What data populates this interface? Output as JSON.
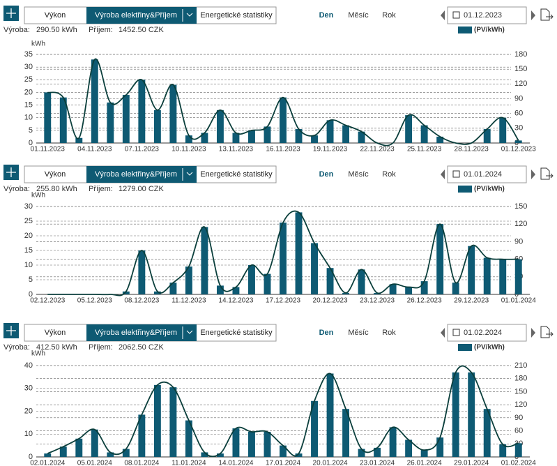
{
  "panels": [
    {
      "buttons": [
        "Výkon",
        "Výroba elektřiny&Příjem",
        "Energetické statistiky"
      ],
      "periods": [
        "Den",
        "Měsíc",
        "Rok"
      ],
      "date": "01.12.2023",
      "summary": {
        "production_label": "Výroba:",
        "production": "290.50 kWh",
        "income_label": "Příjem:",
        "income": "1452.50 CZK"
      }
    },
    {
      "buttons": [
        "Výkon",
        "Výroba elektřiny&Příjem",
        "Energetické statistiky"
      ],
      "periods": [
        "Den",
        "Měsíc",
        "Rok"
      ],
      "date": "01.01.2024",
      "summary": {
        "production_label": "Výroba:",
        "production": "255.80 kWh",
        "income_label": "Příjem:",
        "income": "1279.00 CZK"
      }
    },
    {
      "buttons": [
        "Výkon",
        "Výroba elektřiny&Příjem",
        "Energetické statistiky"
      ],
      "periods": [
        "Den",
        "Měsíc",
        "Rok"
      ],
      "date": "01.02.2024",
      "summary": {
        "production_label": "Výroba:",
        "production": "412.50 kWh",
        "income_label": "Příjem:",
        "income": "2062.50 CZK"
      }
    }
  ],
  "chart_data": [
    {
      "type": "bar",
      "y_label": "kWh",
      "categories": [
        "01.11.2023",
        null,
        null,
        "04.11.2023",
        null,
        null,
        "07.11.2023",
        null,
        null,
        "10.11.2023",
        null,
        null,
        "13.11.2023",
        null,
        null,
        "16.11.2023",
        null,
        null,
        "19.11.2023",
        null,
        null,
        "22.11.2023",
        null,
        null,
        "25.11.2023",
        null,
        null,
        "28.11.2023",
        null,
        null,
        "01.12.2023"
      ],
      "series": [
        {
          "name": "(PV/kWh)",
          "color": "#0e5a73",
          "line_color": "#0b3f3c",
          "values": [
            20,
            18,
            2,
            33,
            16,
            19,
            25,
            13,
            23,
            3,
            4,
            13,
            4,
            5,
            6.5,
            18,
            5.5,
            3,
            9,
            7,
            4.5,
            0,
            0,
            11,
            7,
            2.5,
            0,
            0,
            5.5,
            10,
            1
          ]
        }
      ],
      "ylim": [
        0,
        35
      ],
      "yticks": [
        0,
        5,
        10,
        15,
        20,
        25,
        30,
        35
      ],
      "y2lim": [
        0,
        180
      ],
      "y2ticks": [
        0,
        30,
        60,
        90,
        120,
        150,
        180
      ],
      "grid": true
    },
    {
      "type": "bar",
      "y_label": "kWh",
      "categories": [
        "02.12.2023",
        null,
        null,
        "05.12.2023",
        null,
        null,
        "08.12.2023",
        null,
        null,
        "11.12.2023",
        null,
        null,
        "14.12.2023",
        null,
        null,
        "17.12.2023",
        null,
        null,
        "20.12.2023",
        null,
        null,
        "23.12.2023",
        null,
        null,
        "26.12.2023",
        null,
        null,
        "29.12.2023",
        null,
        null,
        "01.01.2024"
      ],
      "series": [
        {
          "name": "(PV/kWh)",
          "color": "#0e5a73",
          "line_color": "#0b3f3c",
          "values": [
            0,
            0,
            0,
            0,
            0,
            1,
            15,
            1,
            4,
            9.5,
            23,
            3,
            2.5,
            10,
            7,
            24.5,
            28,
            17.5,
            9,
            0.5,
            8.5,
            0.5,
            3.5,
            2.5,
            4.5,
            24,
            4,
            16.5,
            12.5,
            12,
            12
          ]
        }
      ],
      "ylim": [
        0,
        30
      ],
      "yticks": [
        0,
        5,
        10,
        15,
        20,
        25,
        30
      ],
      "y2lim": [
        0,
        150
      ],
      "y2ticks": [
        0,
        30,
        60,
        90,
        120,
        150
      ],
      "grid": true
    },
    {
      "type": "bar",
      "y_label": "kWh",
      "categories": [
        "02.01.2024",
        null,
        null,
        "05.01.2024",
        null,
        null,
        "08.01.2024",
        null,
        null,
        "11.01.2024",
        null,
        null,
        "14.01.2024",
        null,
        null,
        "17.01.2024",
        null,
        null,
        "20.01.2024",
        null,
        null,
        "23.01.2024",
        null,
        null,
        "26.01.2024",
        null,
        null,
        "29.01.2024",
        null,
        null,
        "01.02.2024"
      ],
      "series": [
        {
          "name": "(PV/kWh)",
          "color": "#0e5a73",
          "line_color": "#0b3f3c",
          "values": [
            1.5,
            4.5,
            8,
            12,
            2,
            3.5,
            18.5,
            31.5,
            30.5,
            16,
            2,
            1.5,
            12.5,
            11,
            11,
            5,
            1.5,
            24.5,
            36.5,
            21,
            3.5,
            4,
            13,
            7.5,
            3,
            8.5,
            37,
            37,
            21,
            5.5,
            6
          ]
        }
      ],
      "ylim": [
        0,
        40
      ],
      "yticks": [
        0,
        10,
        20,
        30,
        40
      ],
      "y2lim": [
        0,
        210
      ],
      "y2ticks": [
        0,
        30,
        60,
        90,
        120,
        150,
        180,
        210
      ],
      "grid": true
    }
  ]
}
